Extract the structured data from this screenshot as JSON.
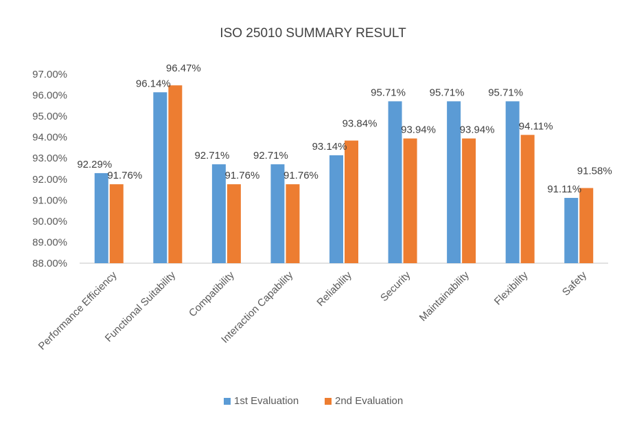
{
  "chart_data": {
    "type": "bar",
    "title": "ISO 25010 SUMMARY RESULT",
    "xlabel": "",
    "ylabel": "",
    "ylim": [
      88,
      97
    ],
    "yticks": [
      "88.00%",
      "89.00%",
      "90.00%",
      "91.00%",
      "92.00%",
      "93.00%",
      "94.00%",
      "95.00%",
      "96.00%",
      "97.00%"
    ],
    "grid": false,
    "legend_position": "bottom",
    "categories": [
      "Performance Efficiency",
      "Functional Suitability",
      "Compatibility",
      "Interaction Capability",
      "Reliability",
      "Security",
      "Maintainability",
      "Flexibility",
      "Safety"
    ],
    "series": [
      {
        "name": "1st Evaluation",
        "color": "#5b9bd5",
        "values": [
          92.29,
          96.14,
          92.71,
          92.71,
          93.14,
          95.71,
          95.71,
          95.71,
          91.11
        ],
        "labels": [
          "92.29%",
          "96.14%",
          "92.71%",
          "92.71%",
          "93.14%",
          "95.71%",
          "95.71%",
          "95.71%",
          "91.11%"
        ]
      },
      {
        "name": "2nd Evaluation",
        "color": "#ed7d31",
        "values": [
          91.76,
          96.47,
          91.76,
          91.76,
          93.84,
          93.94,
          93.94,
          94.11,
          91.58
        ],
        "labels": [
          "91.76%",
          "96.47%",
          "91.76%",
          "91.76%",
          "93.84%",
          "93.94%",
          "93.94%",
          "94.11%",
          "91.58%"
        ]
      }
    ]
  }
}
